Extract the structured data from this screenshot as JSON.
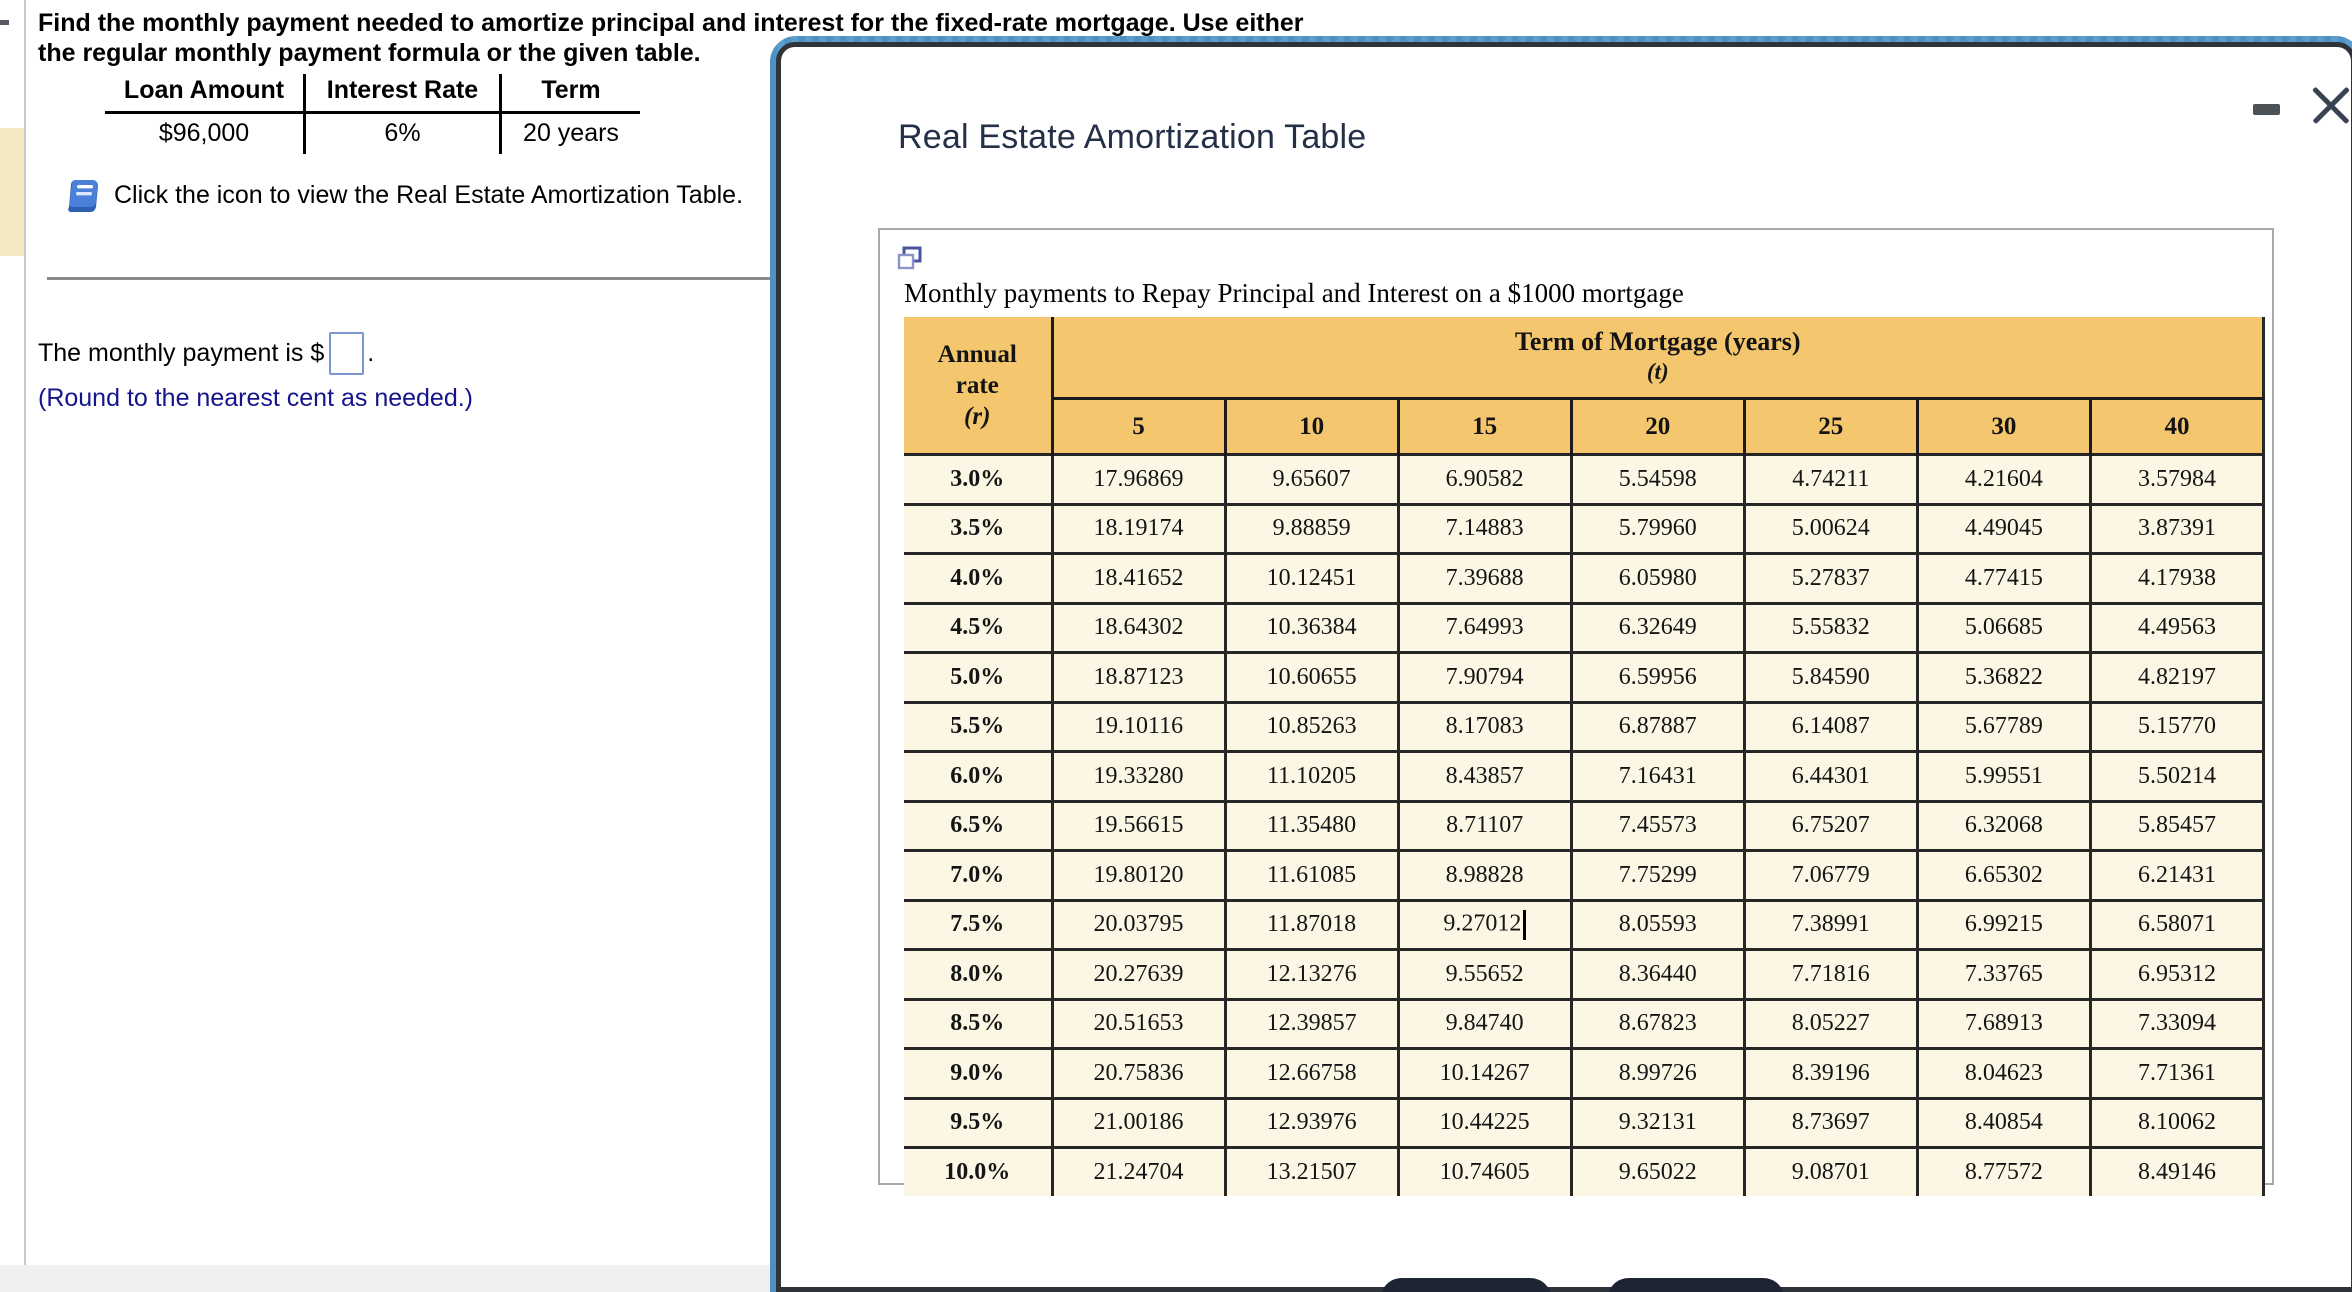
{
  "left_panel": {
    "question": "Find the monthly payment needed to amortize principal and interest for the fixed-rate mortgage. Use either the regular monthly payment formula or the given table.",
    "loan_table": {
      "headers": [
        "Loan Amount",
        "Interest Rate",
        "Term"
      ],
      "values": [
        "$96,000",
        "6%",
        "20 years"
      ]
    },
    "icon_instruction": "Click the icon to view the Real Estate Amortization Table.",
    "answer_prompt": "The monthly payment is $",
    "answer_value": "",
    "answer_suffix": ".",
    "round_note": "(Round to the nearest cent as needed.)"
  },
  "popup": {
    "title": "Real Estate Amortization Table",
    "icons": [
      "minimize-icon",
      "close-icon",
      "duplicate-window-icon",
      "book-icon",
      "text-cursor"
    ],
    "table_caption": "Monthly payments to Repay Principal and Interest on a $1000 mortgage",
    "amortization_table": {
      "corner_header": [
        "Annual",
        "rate",
        "(r)"
      ],
      "term_header": "Term of Mortgage (years)",
      "term_symbol": "(t)",
      "term_columns": [
        "5",
        "10",
        "15",
        "20",
        "25",
        "30",
        "40"
      ],
      "rows": [
        {
          "rate": "3.0%",
          "values": [
            "17.96869",
            "9.65607",
            "6.90582",
            "5.54598",
            "4.74211",
            "4.21604",
            "3.57984"
          ]
        },
        {
          "rate": "3.5%",
          "values": [
            "18.19174",
            "9.88859",
            "7.14883",
            "5.79960",
            "5.00624",
            "4.49045",
            "3.87391"
          ]
        },
        {
          "rate": "4.0%",
          "values": [
            "18.41652",
            "10.12451",
            "7.39688",
            "6.05980",
            "5.27837",
            "4.77415",
            "4.17938"
          ]
        },
        {
          "rate": "4.5%",
          "values": [
            "18.64302",
            "10.36384",
            "7.64993",
            "6.32649",
            "5.55832",
            "5.06685",
            "4.49563"
          ]
        },
        {
          "rate": "5.0%",
          "values": [
            "18.87123",
            "10.60655",
            "7.90794",
            "6.59956",
            "5.84590",
            "5.36822",
            "4.82197"
          ]
        },
        {
          "rate": "5.5%",
          "values": [
            "19.10116",
            "10.85263",
            "8.17083",
            "6.87887",
            "6.14087",
            "5.67789",
            "5.15770"
          ]
        },
        {
          "rate": "6.0%",
          "values": [
            "19.33280",
            "11.10205",
            "8.43857",
            "7.16431",
            "6.44301",
            "5.99551",
            "5.50214"
          ]
        },
        {
          "rate": "6.5%",
          "values": [
            "19.56615",
            "11.35480",
            "8.71107",
            "7.45573",
            "6.75207",
            "6.32068",
            "5.85457"
          ]
        },
        {
          "rate": "7.0%",
          "values": [
            "19.80120",
            "11.61085",
            "8.98828",
            "7.75299",
            "7.06779",
            "6.65302",
            "6.21431"
          ]
        },
        {
          "rate": "7.5%",
          "values": [
            "20.03795",
            "11.87018",
            "9.27012",
            "8.05593",
            "7.38991",
            "6.99215",
            "6.58071"
          ]
        },
        {
          "rate": "8.0%",
          "values": [
            "20.27639",
            "12.13276",
            "9.55652",
            "8.36440",
            "7.71816",
            "7.33765",
            "6.95312"
          ]
        },
        {
          "rate": "8.5%",
          "values": [
            "20.51653",
            "12.39857",
            "9.84740",
            "8.67823",
            "8.05227",
            "7.68913",
            "7.33094"
          ]
        },
        {
          "rate": "9.0%",
          "values": [
            "20.75836",
            "12.66758",
            "10.14267",
            "8.99726",
            "8.39196",
            "8.04623",
            "7.71361"
          ]
        },
        {
          "rate": "9.5%",
          "values": [
            "21.00186",
            "12.93976",
            "10.44225",
            "9.32131",
            "8.73697",
            "8.40854",
            "8.10062"
          ]
        },
        {
          "rate": "10.0%",
          "values": [
            "21.24704",
            "13.21507",
            "10.74605",
            "9.65022",
            "9.08701",
            "8.77572",
            "8.49146"
          ]
        }
      ],
      "caret": {
        "row": 9,
        "col": 2
      }
    }
  },
  "colors": {
    "table_header_bg": "#f4c76e",
    "table_row_bg": "#fcf7e4",
    "popup_border_blue": "#4e92c5",
    "popup_border_dark": "#2e343a",
    "note_navy": "#14148c",
    "button_dark": "#1d2433",
    "rail_yellow": "#f3e8c2"
  }
}
